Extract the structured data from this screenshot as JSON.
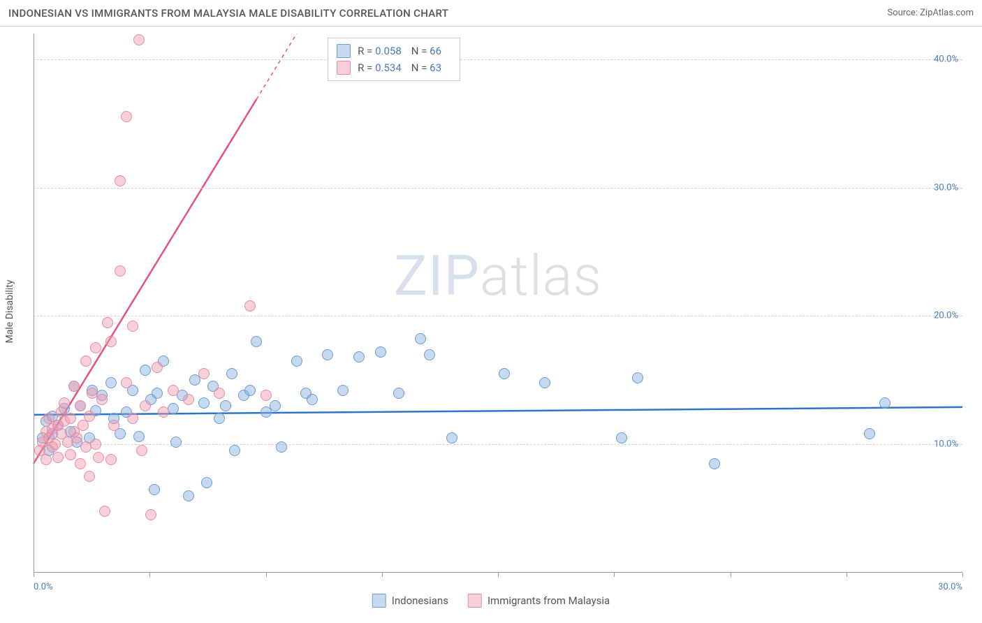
{
  "header": {
    "title": "INDONESIAN VS IMMIGRANTS FROM MALAYSIA MALE DISABILITY CORRELATION CHART",
    "source_label": "Source:",
    "source_name": "ZipAtlas.com"
  },
  "chart": {
    "type": "scatter",
    "y_label": "Male Disability",
    "background_color": "#ffffff",
    "grid_color": "#d0d0d0",
    "axis_color": "#999999",
    "text_color": "#555555",
    "value_color": "#4a7ebb",
    "xlim": [
      0,
      30
    ],
    "ylim": [
      0,
      42
    ],
    "x_ticks": [
      0,
      3.75,
      7.5,
      11.25,
      15,
      18.75,
      22.5,
      26.25,
      30
    ],
    "x_tick_labels": {
      "0": "0.0%",
      "30": "30.0%"
    },
    "y_gridlines": [
      10,
      20,
      30,
      40
    ],
    "y_tick_labels": {
      "10": "10.0%",
      "20": "20.0%",
      "30": "30.0%",
      "40": "40.0%"
    },
    "watermark": {
      "left": "ZIP",
      "right": "atlas"
    },
    "series": [
      {
        "id": "indonesians",
        "label": "Indonesians",
        "color_fill": "rgba(130,170,220,0.45)",
        "color_stroke": "#6a9bd4",
        "trend_color": "#2f74c4",
        "trend_width": 2.5,
        "marker_radius": 8,
        "R": "0.058",
        "N": "66",
        "trend": {
          "x1": 0,
          "y1": 12.3,
          "x2": 30,
          "y2": 12.9
        },
        "points": [
          [
            0.3,
            10.5
          ],
          [
            0.4,
            11.8
          ],
          [
            0.5,
            9.5
          ],
          [
            0.6,
            12.2
          ],
          [
            0.6,
            10.8
          ],
          [
            0.8,
            11.5
          ],
          [
            1.0,
            12.8
          ],
          [
            1.2,
            11.0
          ],
          [
            1.3,
            14.5
          ],
          [
            1.4,
            10.2
          ],
          [
            1.5,
            13.0
          ],
          [
            1.8,
            10.5
          ],
          [
            1.9,
            14.2
          ],
          [
            2.0,
            12.6
          ],
          [
            2.2,
            13.8
          ],
          [
            2.5,
            14.8
          ],
          [
            2.6,
            12.0
          ],
          [
            2.8,
            10.8
          ],
          [
            3.0,
            12.5
          ],
          [
            3.2,
            14.2
          ],
          [
            3.4,
            10.6
          ],
          [
            3.6,
            15.8
          ],
          [
            3.8,
            13.5
          ],
          [
            3.9,
            6.5
          ],
          [
            4.0,
            14.0
          ],
          [
            4.2,
            16.5
          ],
          [
            4.5,
            12.8
          ],
          [
            4.6,
            10.2
          ],
          [
            4.8,
            13.8
          ],
          [
            5.0,
            6.0
          ],
          [
            5.2,
            15.0
          ],
          [
            5.5,
            13.2
          ],
          [
            5.6,
            7.0
          ],
          [
            5.8,
            14.5
          ],
          [
            6.0,
            12.0
          ],
          [
            6.2,
            13.0
          ],
          [
            6.4,
            15.5
          ],
          [
            6.5,
            9.5
          ],
          [
            6.8,
            13.8
          ],
          [
            7.0,
            14.2
          ],
          [
            7.2,
            18.0
          ],
          [
            7.5,
            12.5
          ],
          [
            7.8,
            13.0
          ],
          [
            8.0,
            9.8
          ],
          [
            8.5,
            16.5
          ],
          [
            8.8,
            14.0
          ],
          [
            9.0,
            13.5
          ],
          [
            9.5,
            17.0
          ],
          [
            10.0,
            14.2
          ],
          [
            10.5,
            16.8
          ],
          [
            11.2,
            17.2
          ],
          [
            11.8,
            14.0
          ],
          [
            12.5,
            18.2
          ],
          [
            12.8,
            17.0
          ],
          [
            13.5,
            10.5
          ],
          [
            15.2,
            15.5
          ],
          [
            16.5,
            14.8
          ],
          [
            19.0,
            10.5
          ],
          [
            19.5,
            15.2
          ],
          [
            22.0,
            8.5
          ],
          [
            27.0,
            10.8
          ],
          [
            27.5,
            13.2
          ]
        ]
      },
      {
        "id": "malaysia",
        "label": "Immigrants from Malaysia",
        "color_fill": "rgba(240,150,170,0.45)",
        "color_stroke": "#e88aa0",
        "trend_color": "#e6537a",
        "trend_width": 2.5,
        "marker_radius": 8,
        "R": "0.534",
        "N": "63",
        "trend": {
          "x1": 0,
          "y1": 8.5,
          "x2": 8.5,
          "y2": 42
        },
        "trend_dashed_from_x": 7.2,
        "points": [
          [
            0.2,
            9.5
          ],
          [
            0.3,
            10.2
          ],
          [
            0.4,
            11.0
          ],
          [
            0.4,
            8.8
          ],
          [
            0.5,
            10.5
          ],
          [
            0.5,
            12.0
          ],
          [
            0.6,
            9.8
          ],
          [
            0.6,
            11.2
          ],
          [
            0.7,
            10.0
          ],
          [
            0.8,
            11.5
          ],
          [
            0.8,
            9.0
          ],
          [
            0.9,
            12.5
          ],
          [
            0.9,
            10.8
          ],
          [
            1.0,
            11.8
          ],
          [
            1.0,
            13.2
          ],
          [
            1.1,
            10.2
          ],
          [
            1.2,
            12.0
          ],
          [
            1.2,
            9.2
          ],
          [
            1.3,
            14.5
          ],
          [
            1.3,
            11.0
          ],
          [
            1.4,
            10.5
          ],
          [
            1.5,
            13.0
          ],
          [
            1.5,
            8.5
          ],
          [
            1.6,
            11.5
          ],
          [
            1.7,
            16.5
          ],
          [
            1.7,
            9.8
          ],
          [
            1.8,
            12.2
          ],
          [
            1.8,
            7.5
          ],
          [
            1.9,
            14.0
          ],
          [
            2.0,
            17.5
          ],
          [
            2.0,
            10.0
          ],
          [
            2.1,
            9.0
          ],
          [
            2.2,
            13.5
          ],
          [
            2.3,
            4.8
          ],
          [
            2.4,
            19.5
          ],
          [
            2.5,
            18.0
          ],
          [
            2.5,
            8.8
          ],
          [
            2.6,
            11.5
          ],
          [
            2.8,
            30.5
          ],
          [
            2.8,
            23.5
          ],
          [
            3.0,
            14.8
          ],
          [
            3.0,
            35.5
          ],
          [
            3.2,
            19.2
          ],
          [
            3.2,
            12.0
          ],
          [
            3.4,
            41.5
          ],
          [
            3.5,
            9.5
          ],
          [
            3.6,
            13.0
          ],
          [
            3.8,
            4.5
          ],
          [
            4.0,
            16.0
          ],
          [
            4.2,
            12.5
          ],
          [
            4.5,
            14.2
          ],
          [
            5.0,
            13.5
          ],
          [
            5.5,
            15.5
          ],
          [
            6.0,
            14.0
          ],
          [
            7.0,
            20.8
          ],
          [
            7.5,
            13.8
          ]
        ]
      }
    ],
    "legend_stats": {
      "R_label": "R =",
      "N_label": "N ="
    }
  }
}
